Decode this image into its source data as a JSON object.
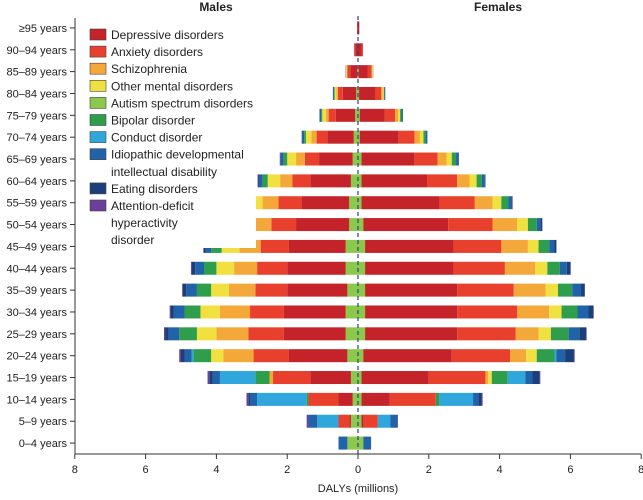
{
  "chart_data": {
    "type": "bar",
    "subtype": "population-pyramid-stacked",
    "title": "",
    "xlabel": "DALYs (millions)",
    "ylabel": "",
    "left_group_label": "Males",
    "right_group_label": "Females",
    "xlim": [
      -8,
      8
    ],
    "xticks": [
      -8,
      -6,
      -4,
      -2,
      0,
      2,
      4,
      6,
      8
    ],
    "xtick_labels": [
      "8",
      "6",
      "4",
      "2",
      "0",
      "2",
      "4",
      "6",
      "8"
    ],
    "age_groups": [
      "0–4 years",
      "5–9 years",
      "10–14 years",
      "15–19 years",
      "20–24 years",
      "25–29 years",
      "30–34 years",
      "35–39 years",
      "40–44 years",
      "45–49 years",
      "50–54 years",
      "55–59 years",
      "60–64 years",
      "65–69 years",
      "70–74 years",
      "75–79 years",
      "80–84 years",
      "85–89 years",
      "90–94 years",
      "≥95 years"
    ],
    "series": [
      {
        "name": "Depressive disorders",
        "color": "#c4232a",
        "males": [
          0,
          0.05,
          0.4,
          1.15,
          1.65,
          1.75,
          1.75,
          1.7,
          1.65,
          1.6,
          1.5,
          1.35,
          1.15,
          0.95,
          0.75,
          0.55,
          0.38,
          0.2,
          0.08,
          0.02
        ],
        "females": [
          0,
          0.06,
          0.8,
          1.9,
          2.5,
          2.6,
          2.6,
          2.6,
          2.5,
          2.5,
          2.4,
          2.2,
          1.85,
          1.5,
          1.1,
          0.7,
          0.45,
          0.26,
          0.1,
          0.03
        ]
      },
      {
        "name": "Anxiety disorders",
        "color": "#e8402c",
        "males": [
          0,
          0.3,
          0.85,
          1.05,
          1.0,
          1.0,
          0.95,
          0.9,
          0.85,
          0.8,
          0.7,
          0.65,
          0.5,
          0.4,
          0.3,
          0.2,
          0.14,
          0.08,
          0.03,
          0.01
        ],
        "females": [
          0,
          0.4,
          1.3,
          1.6,
          1.65,
          1.65,
          1.7,
          1.6,
          1.45,
          1.35,
          1.25,
          1.0,
          0.85,
          0.65,
          0.45,
          0.3,
          0.18,
          0.1,
          0.04,
          0.01
        ]
      },
      {
        "name": "Schizophrenia",
        "color": "#f5a83a",
        "males": [
          0,
          0,
          0,
          0.1,
          0.85,
          0.9,
          0.85,
          0.75,
          0.65,
          0.6,
          0.6,
          0.45,
          0.35,
          0.25,
          0.15,
          0.08,
          0.04,
          0.02,
          0,
          0
        ],
        "females": [
          0,
          0,
          0,
          0.08,
          0.45,
          0.65,
          0.9,
          0.9,
          0.85,
          0.75,
          0.7,
          0.5,
          0.35,
          0.25,
          0.15,
          0.08,
          0.04,
          0.02,
          0,
          0
        ]
      },
      {
        "name": "Other mental disorders",
        "color": "#f0e040",
        "males": [
          0,
          0,
          0,
          0,
          0.35,
          0.55,
          0.55,
          0.5,
          0.5,
          0.5,
          0.5,
          0.4,
          0.35,
          0.25,
          0.15,
          0.1,
          0.05,
          0.02,
          0,
          0
        ],
        "females": [
          0,
          0,
          0,
          0.1,
          0.3,
          0.35,
          0.35,
          0.35,
          0.35,
          0.3,
          0.3,
          0.25,
          0.2,
          0.15,
          0.1,
          0.06,
          0.03,
          0.02,
          0,
          0
        ]
      },
      {
        "name": "Autism spectrum disorders",
        "color": "#8cc84b",
        "males": [
          0.3,
          0.2,
          0.15,
          0.2,
          0.3,
          0.35,
          0.35,
          0.3,
          0.35,
          0.35,
          0.25,
          0.25,
          0.2,
          0.15,
          0.12,
          0.08,
          0.05,
          0.02,
          0,
          0
        ],
        "females": [
          0.15,
          0.1,
          0.1,
          0.1,
          0.15,
          0.2,
          0.2,
          0.2,
          0.2,
          0.2,
          0.15,
          0.1,
          0.1,
          0.1,
          0.05,
          0.05,
          0.03,
          0.02,
          0,
          0
        ],
        "center": true
      },
      {
        "name": "Bipolar disorder",
        "color": "#2e9e4d",
        "males": [
          0,
          0,
          0.05,
          0.4,
          0.5,
          0.5,
          0.45,
          0.4,
          0.35,
          0.3,
          0.25,
          0.2,
          0.15,
          0.1,
          0.05,
          0.03,
          0.02,
          0,
          0,
          0
        ],
        "females": [
          0,
          0,
          0.1,
          0.45,
          0.5,
          0.5,
          0.45,
          0.4,
          0.35,
          0.3,
          0.25,
          0.2,
          0.15,
          0.12,
          0.06,
          0.04,
          0.02,
          0,
          0,
          0
        ]
      },
      {
        "name": "Conduct disorder",
        "color": "#2fa6dc",
        "males": [
          0,
          0.6,
          1.4,
          1.0,
          0.05,
          0,
          0,
          0,
          0,
          0,
          0,
          0,
          0,
          0,
          0,
          0,
          0,
          0,
          0,
          0
        ],
        "females": [
          0,
          0.35,
          0.95,
          0.5,
          0.05,
          0,
          0,
          0,
          0,
          0,
          0,
          0,
          0,
          0,
          0,
          0,
          0,
          0,
          0,
          0
        ]
      },
      {
        "name": "Idiopathic developmental intellectual disability",
        "color": "#2163a8",
        "males": [
          0.25,
          0.25,
          0.2,
          0.2,
          0.2,
          0.3,
          0.3,
          0.3,
          0.25,
          0.15,
          0.15,
          0.12,
          0.1,
          0.08,
          0.05,
          0.04,
          0.03,
          0.01,
          0,
          0
        ],
        "females": [
          0.22,
          0.2,
          0.15,
          0.2,
          0.25,
          0.3,
          0.3,
          0.25,
          0.2,
          0.15,
          0.1,
          0.08,
          0.08,
          0.06,
          0.04,
          0.03,
          0.02,
          0.01,
          0,
          0
        ]
      },
      {
        "name": "Eating disorders",
        "color": "#1b3f7a",
        "males": [
          0,
          0,
          0.05,
          0.1,
          0.1,
          0.1,
          0.1,
          0.1,
          0.1,
          0.05,
          0.05,
          0.05,
          0.03,
          0.02,
          0.02,
          0.01,
          0,
          0,
          0,
          0
        ],
        "females": [
          0,
          0,
          0.1,
          0.2,
          0.25,
          0.2,
          0.15,
          0.1,
          0.1,
          0.05,
          0.05,
          0.03,
          0.02,
          0.02,
          0.01,
          0.01,
          0,
          0,
          0,
          0
        ]
      },
      {
        "name": "Attention-deficit hyperactivity disorder",
        "color": "#6e3f9a",
        "males": [
          0,
          0.05,
          0.05,
          0.05,
          0.05,
          0.03,
          0.02,
          0.02,
          0.02,
          0.02,
          0.02,
          0.02,
          0.01,
          0.01,
          0,
          0,
          0,
          0,
          0,
          0
        ],
        "females": [
          0,
          0.02,
          0.02,
          0.02,
          0.02,
          0.01,
          0.01,
          0.01,
          0.01,
          0.01,
          0.01,
          0.01,
          0,
          0,
          0,
          0,
          0,
          0,
          0,
          0
        ]
      }
    ],
    "legend_entries": [
      [
        "Depressive disorders"
      ],
      [
        "Anxiety disorders"
      ],
      [
        "Schizophrenia"
      ],
      [
        "Other mental disorders"
      ],
      [
        "Autism spectrum disorders"
      ],
      [
        "Bipolar disorder"
      ],
      [
        "Conduct disorder"
      ],
      [
        "Idiopathic developmental",
        "intellectual disability"
      ],
      [
        "Eating disorders"
      ],
      [
        "Attention-deficit",
        "hyperactivity",
        "disorder"
      ]
    ],
    "legend_position": "top-left"
  }
}
